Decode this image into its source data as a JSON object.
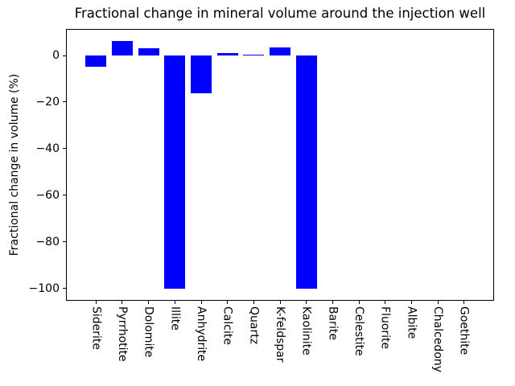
{
  "chart_data": {
    "type": "bar",
    "title": "Fractional change in mineral volume around the injection well",
    "xlabel": "",
    "ylabel": "Fractional change in volume (%)",
    "categories": [
      "Siderite",
      "Pyrrhotite",
      "Dolomite",
      "Illite",
      "Anhydrite",
      "Calcite",
      "Quartz",
      "K-feldspar",
      "Kaolinite",
      "Barite",
      "Celestite",
      "Fluorite",
      "Albite",
      "Chalcedony",
      "Goethite"
    ],
    "values": [
      -4.9,
      6.2,
      3.1,
      -100,
      -16.2,
      1.0,
      0.4,
      3.4,
      -100,
      0,
      0,
      0,
      0,
      0,
      0
    ],
    "yticks": [
      0,
      -20,
      -40,
      -60,
      -80,
      -100
    ],
    "ylim": [
      -105.3,
      11.4
    ],
    "xlim": [
      -1.14,
      15.14
    ],
    "bar_width": 0.8,
    "bar_color": "#0000ff",
    "axis_color": "#000000",
    "background_color": "#ffffff",
    "grid": false,
    "legend": "none",
    "xtick_rotation": "vertical"
  }
}
